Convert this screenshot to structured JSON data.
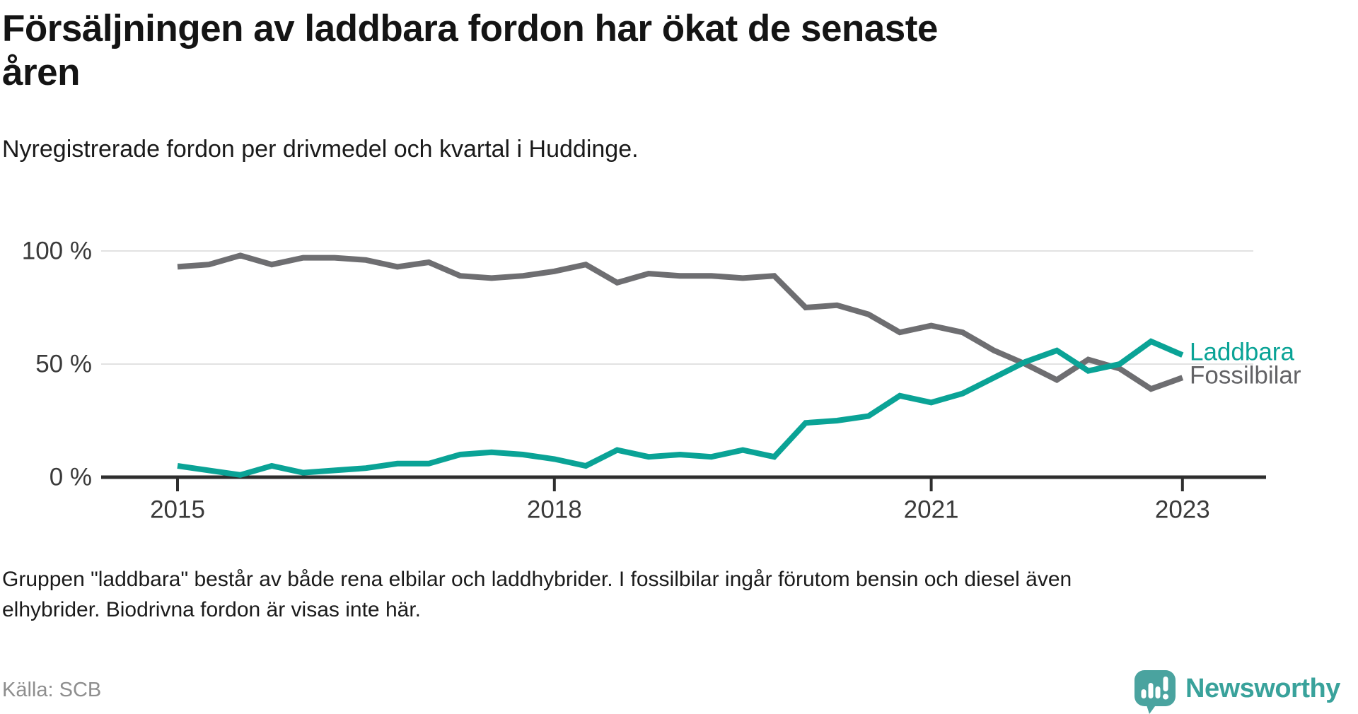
{
  "header": {
    "title_line1": "Försäljningen av laddbara fordon har ökat de senaste",
    "title_line2": "åren",
    "subtitle": "Nyregistrerade fordon per drivmedel och kvartal i Huddinge."
  },
  "chart_data": {
    "type": "line",
    "unit": "%",
    "x_quarters": [
      "2015 Q1",
      "2015 Q2",
      "2015 Q3",
      "2015 Q4",
      "2016 Q1",
      "2016 Q2",
      "2016 Q3",
      "2016 Q4",
      "2017 Q1",
      "2017 Q2",
      "2017 Q3",
      "2017 Q4",
      "2018 Q1",
      "2018 Q2",
      "2018 Q3",
      "2018 Q4",
      "2019 Q1",
      "2019 Q2",
      "2019 Q3",
      "2019 Q4",
      "2020 Q1",
      "2020 Q2",
      "2020 Q3",
      "2020 Q4",
      "2021 Q1",
      "2021 Q2",
      "2021 Q3",
      "2021 Q4",
      "2022 Q1",
      "2022 Q2",
      "2022 Q3",
      "2022 Q4",
      "2023 Q1"
    ],
    "x_tick_labels": [
      "2015",
      "2018",
      "2021",
      "2023"
    ],
    "x_tick_quarter_indices": [
      0,
      12,
      24,
      32
    ],
    "y_ticks": [
      {
        "label": "100 %",
        "value": 100
      },
      {
        "label": "50 %",
        "value": 50
      },
      {
        "label": "0 %",
        "value": 0
      }
    ],
    "ylim": [
      0,
      100
    ],
    "grid": "horizontal-only",
    "legend_position": "line-end-labels-right",
    "series": [
      {
        "name": "Fossilbilar",
        "color": "#6e6e71",
        "values": [
          93,
          94,
          98,
          94,
          97,
          97,
          96,
          93,
          95,
          89,
          88,
          89,
          91,
          94,
          86,
          90,
          89,
          89,
          88,
          89,
          75,
          76,
          72,
          64,
          67,
          64,
          56,
          50,
          43,
          52,
          48,
          39,
          44
        ]
      },
      {
        "name": "Laddbara",
        "color": "#0aa396",
        "values": [
          5,
          3,
          1,
          5,
          2,
          3,
          4,
          6,
          6,
          10,
          11,
          10,
          8,
          5,
          12,
          9,
          10,
          9,
          12,
          9,
          24,
          25,
          27,
          36,
          33,
          37,
          44,
          51,
          56,
          47,
          50,
          60,
          54
        ]
      }
    ]
  },
  "footnote": {
    "line1": "Gruppen \"laddbara\" består av både rena elbilar och laddhybrider. I fossilbilar ingår förutom bensin och diesel även",
    "line2": "elhybrider. Biodrivna fordon är visas inte här."
  },
  "source": "Källa: SCB",
  "logo": {
    "brand": "Newsworthy"
  }
}
